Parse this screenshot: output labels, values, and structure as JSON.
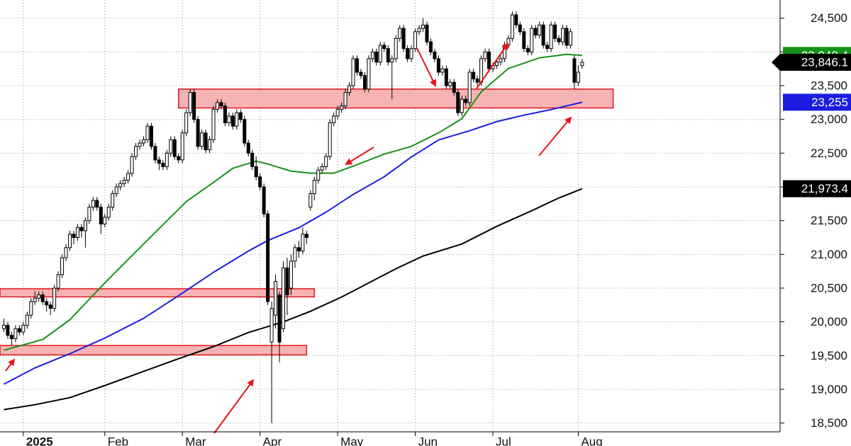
{
  "chart_data": {
    "type": "candlestick",
    "xlim": [
      -1,
      200
    ],
    "ylim": [
      18370,
      24770
    ],
    "xticks": [
      {
        "value": 5,
        "label": "2025"
      },
      {
        "value": 26,
        "label": "Feb"
      },
      {
        "value": 46,
        "label": "Mar"
      },
      {
        "value": 66,
        "label": "Apr"
      },
      {
        "value": 86,
        "label": "May"
      },
      {
        "value": 106,
        "label": "Jun"
      },
      {
        "value": 126,
        "label": "Jul"
      },
      {
        "value": 148,
        "label": "Aug"
      }
    ],
    "yticks": [
      {
        "value": 18500,
        "label": "18,500"
      },
      {
        "value": 19000,
        "label": "19,000"
      },
      {
        "value": 19500,
        "label": "19,500"
      },
      {
        "value": 20000,
        "label": "20,000"
      },
      {
        "value": 20500,
        "label": "20,500"
      },
      {
        "value": 21000,
        "label": "21,000"
      },
      {
        "value": 21500,
        "label": "21,500"
      },
      {
        "value": 22000,
        "label": "22,000"
      },
      {
        "value": 22500,
        "label": "22,500"
      },
      {
        "value": 23000,
        "label": "23,000"
      },
      {
        "value": 23500,
        "label": "23,500"
      },
      {
        "value": 24000,
        "label": "24,000"
      },
      {
        "value": 24500,
        "label": "24,500"
      }
    ],
    "grid": true,
    "up_color": "#ffffff",
    "down_color": "#000000",
    "open": [
      19900,
      19950,
      19800,
      19750,
      19900,
      19850,
      19950,
      20100,
      20300,
      20350,
      20400,
      20300,
      20250,
      20200,
      20500,
      20700,
      20950,
      21100,
      21300,
      21250,
      21400,
      21350,
      21500,
      21700,
      21800,
      21700,
      21450,
      21550,
      21700,
      21900,
      22000,
      22050,
      22100,
      22200,
      22450,
      22600,
      22650,
      22700,
      22900,
      22600,
      22400,
      22350,
      22300,
      22500,
      22700,
      22450,
      22400,
      22800,
      23100,
      23400,
      23000,
      22600,
      22800,
      22550,
      22700,
      23150,
      23250,
      23200,
      22950,
      23050,
      22900,
      23100,
      23000,
      22650,
      22500,
      22300,
      22150,
      22000,
      21600,
      19700,
      20100,
      20400,
      19900,
      20800,
      20500,
      20900,
      21100,
      21050,
      21300,
      21700,
      21900,
      22100,
      22250,
      22300,
      22450,
      22950,
      23050,
      23150,
      23200,
      23400,
      23500,
      23900,
      23700,
      23650,
      23450,
      23900,
      24000,
      23850,
      24100,
      24050,
      23850,
      23900,
      24200,
      24350,
      24050,
      23900,
      24050,
      24300,
      24350,
      24400,
      24150,
      24000,
      23900,
      23700,
      23750,
      23500,
      23550,
      23400,
      23100,
      23300,
      23250,
      23700,
      23600,
      23550,
      23900,
      24000,
      23750,
      23800,
      23850,
      23900,
      24100,
      24200,
      24550,
      24400,
      24300,
      24050,
      24000,
      24350,
      24250,
      24400,
      24100,
      24050,
      24400,
      24200,
      24150,
      24350,
      24100,
      23900,
      23550,
      23800
    ],
    "high": [
      20050,
      20000,
      19850,
      19950,
      19950,
      20000,
      20150,
      20350,
      20450,
      20450,
      20450,
      20350,
      20300,
      20550,
      20750,
      21000,
      21150,
      21350,
      21350,
      21450,
      21450,
      21550,
      21750,
      21850,
      21850,
      21750,
      21600,
      21750,
      21950,
      22050,
      22100,
      22150,
      22250,
      22500,
      22650,
      22700,
      22750,
      22950,
      22950,
      22650,
      22450,
      22400,
      22550,
      22750,
      22750,
      22500,
      22850,
      23150,
      23450,
      23450,
      23050,
      22850,
      22850,
      22750,
      23200,
      23300,
      23300,
      23250,
      23100,
      23100,
      23150,
      23150,
      23050,
      22700,
      22550,
      22450,
      22200,
      22050,
      21650,
      20300,
      20700,
      20450,
      20900,
      20950,
      21000,
      21150,
      21200,
      21400,
      21350,
      21950,
      22150,
      22300,
      22350,
      22500,
      23000,
      23100,
      23200,
      23250,
      23450,
      23550,
      23950,
      23950,
      23750,
      23700,
      23950,
      24050,
      24050,
      24150,
      24150,
      24100,
      23950,
      24250,
      24400,
      24400,
      24100,
      24100,
      24350,
      24400,
      24500,
      24450,
      24200,
      24050,
      23950,
      23800,
      23800,
      23600,
      23600,
      23450,
      23350,
      23350,
      23750,
      23750,
      23650,
      23950,
      24050,
      24050,
      23850,
      23900,
      23950,
      24150,
      24250,
      24600,
      24600,
      24450,
      24350,
      24100,
      24400,
      24400,
      24450,
      24450,
      24150,
      24450,
      24450,
      24250,
      24400,
      24400,
      24350,
      23950,
      23800,
      23900
    ],
    "low": [
      19850,
      19750,
      19650,
      19700,
      19800,
      19800,
      19900,
      20050,
      20250,
      20300,
      20250,
      20150,
      20100,
      20150,
      20450,
      20650,
      20900,
      21050,
      21150,
      21200,
      21250,
      21100,
      21450,
      21650,
      21650,
      21300,
      21400,
      21500,
      21650,
      21850,
      21950,
      22000,
      22050,
      22150,
      22400,
      22550,
      22600,
      22650,
      22550,
      22350,
      22250,
      22250,
      22250,
      22450,
      22400,
      22350,
      22350,
      22750,
      23050,
      22950,
      22550,
      22550,
      22500,
      22500,
      22650,
      23100,
      23150,
      22900,
      22900,
      22850,
      22850,
      22950,
      22600,
      22450,
      22250,
      22100,
      21950,
      21550,
      20250,
      18500,
      19900,
      19400,
      19850,
      20100,
      20400,
      20800,
      20950,
      21000,
      21150,
      21650,
      21800,
      22050,
      22200,
      22250,
      22400,
      22900,
      23000,
      23100,
      23150,
      23350,
      23450,
      23650,
      23600,
      23400,
      23400,
      23850,
      23800,
      23800,
      24000,
      23800,
      23300,
      23850,
      24150,
      24000,
      23850,
      23850,
      24000,
      24250,
      24300,
      24100,
      23950,
      23850,
      23650,
      23650,
      23450,
      23450,
      23350,
      23050,
      23050,
      23200,
      23200,
      23550,
      23500,
      23500,
      23850,
      23700,
      23700,
      23750,
      23800,
      23850,
      24050,
      24150,
      24350,
      24250,
      24000,
      23950,
      23950,
      24200,
      24200,
      24050,
      24000,
      24000,
      24150,
      24100,
      24100,
      24050,
      24050,
      23450,
      23500,
      23750
    ],
    "close": [
      19950,
      19800,
      19750,
      19900,
      19850,
      19950,
      20100,
      20300,
      20350,
      20400,
      20300,
      20250,
      20200,
      20500,
      20700,
      20950,
      21100,
      21300,
      21250,
      21400,
      21350,
      21500,
      21700,
      21800,
      21700,
      21450,
      21550,
      21700,
      21900,
      22000,
      22050,
      22100,
      22200,
      22450,
      22600,
      22650,
      22700,
      22900,
      22600,
      22400,
      22350,
      22300,
      22500,
      22700,
      22450,
      22400,
      22800,
      23100,
      23400,
      23000,
      22600,
      22800,
      22550,
      22700,
      23150,
      23250,
      23200,
      22950,
      23050,
      22900,
      23100,
      23000,
      22650,
      22500,
      22300,
      22150,
      22000,
      21600,
      20300,
      20200,
      20600,
      19700,
      20800,
      20400,
      20900,
      21100,
      21050,
      21300,
      21250,
      21900,
      22100,
      22250,
      22300,
      22450,
      22950,
      23050,
      23150,
      23200,
      23400,
      23500,
      23900,
      23700,
      23650,
      23450,
      23900,
      24000,
      23850,
      24100,
      24050,
      23850,
      23900,
      24200,
      24350,
      24050,
      23900,
      24050,
      24300,
      24350,
      24400,
      24150,
      24000,
      23900,
      23700,
      23750,
      23500,
      23550,
      23400,
      23100,
      23300,
      23250,
      23700,
      23600,
      23550,
      23900,
      24000,
      23750,
      23800,
      23850,
      23900,
      24100,
      24200,
      24550,
      24400,
      24300,
      24050,
      24000,
      24350,
      24250,
      24400,
      24100,
      24050,
      24400,
      24200,
      24150,
      24350,
      24100,
      24300,
      23550,
      23700,
      23846.1
    ],
    "last_close_label": "23,846.1",
    "series": [
      {
        "color": "#179117",
        "x": [
          0,
          10,
          17,
          26,
          36,
          47,
          54,
          59,
          65,
          68,
          74,
          79,
          85,
          90,
          98,
          105,
          112,
          118,
          123,
          130,
          138,
          145,
          149
        ],
        "values": [
          19580,
          19738,
          20031,
          20577,
          21154,
          21783,
          22066,
          22276,
          22381,
          22339,
          22234,
          22203,
          22203,
          22307,
          22486,
          22601,
          22801,
          23010,
          23409,
          23755,
          23913,
          23965,
          23948.4
        ],
        "last_label": "23,948.4"
      },
      {
        "color": "#1c1ce0",
        "x": [
          0,
          8,
          17,
          26,
          36,
          45,
          54,
          63,
          68,
          76,
          83,
          90,
          98,
          105,
          112,
          120,
          127,
          134,
          141,
          149
        ],
        "values": [
          19077,
          19318,
          19528,
          19759,
          20052,
          20388,
          20734,
          21049,
          21206,
          21395,
          21626,
          21888,
          22150,
          22444,
          22696,
          22832,
          22968,
          23063,
          23146,
          23255
        ],
        "last_label": "23,255"
      },
      {
        "color": "#000000",
        "x": [
          0,
          8,
          17,
          26,
          36,
          45,
          54,
          63,
          72,
          79,
          87,
          94,
          101,
          108,
          118,
          127,
          136,
          143,
          149
        ],
        "values": [
          18699,
          18772,
          18877,
          19056,
          19266,
          19454,
          19633,
          19842,
          20000,
          20157,
          20367,
          20577,
          20787,
          20975,
          21154,
          21416,
          21647,
          21836,
          21973.4
        ],
        "last_label": "21,973.4"
      }
    ],
    "zones": [
      {
        "x": [
          45,
          157
        ],
        "y": [
          23170,
          23450
        ]
      },
      {
        "x": [
          -1,
          80
        ],
        "y": [
          20370,
          20490
        ]
      },
      {
        "x": [
          -1,
          78
        ],
        "y": [
          19510,
          19650
        ]
      }
    ],
    "zone_fill": "#f6b3b3",
    "zone_stroke": "#e3161c"
  }
}
